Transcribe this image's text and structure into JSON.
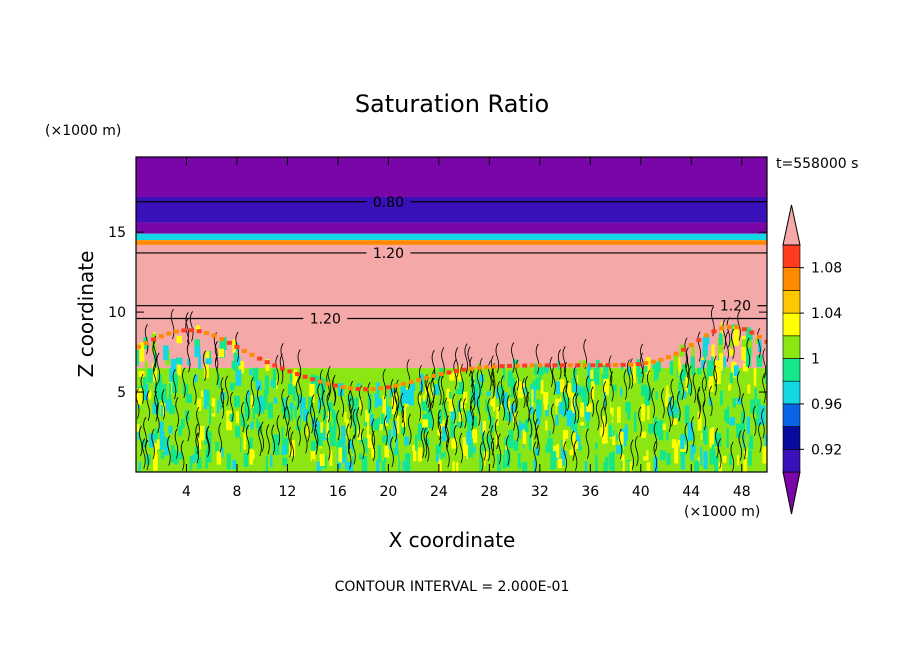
{
  "chart_data": {
    "type": "heatmap",
    "title": "Saturation Ratio",
    "xlabel": "X coordinate",
    "ylabel": "Z coordinate",
    "x_unit": "(×1000 m)",
    "z_unit": "(×1000 m)",
    "time_label": "t=558000 s",
    "footer": "CONTOUR INTERVAL = 2.000E-01",
    "xlim": [
      0,
      50
    ],
    "ylim": [
      0,
      19.7
    ],
    "x_ticks": [
      4,
      8,
      12,
      16,
      20,
      24,
      28,
      32,
      36,
      40,
      44,
      48
    ],
    "y_ticks": [
      5,
      10,
      15
    ],
    "colorbar": {
      "levels": [
        0.92,
        0.96,
        1,
        1.04,
        1.08
      ],
      "label_text": [
        "0.92",
        "0.96",
        "1",
        "1.04",
        "1.08"
      ],
      "colors": [
        "#7a06a8",
        "#3a10b8",
        "#0a0a9e",
        "#0a64e6",
        "#14d7e6",
        "#14e68a",
        "#8ce614",
        "#ffff00",
        "#ffc800",
        "#ff8a00",
        "#ff3c1e",
        "#f5a8a8"
      ]
    },
    "bands": [
      {
        "z_from": 17.2,
        "z_to": 19.7,
        "color": "#7a06a8"
      },
      {
        "z_from": 15.6,
        "z_to": 17.2,
        "color": "#3a10b8"
      },
      {
        "z_from": 14.9,
        "z_to": 15.6,
        "color": "#7a06a8"
      },
      {
        "z_from": 14.5,
        "z_to": 14.9,
        "color": "#14d7e6"
      },
      {
        "z_from": 14.2,
        "z_to": 14.5,
        "color": "#ff8a00"
      },
      {
        "z_from": 6.5,
        "z_to": 14.2,
        "color": "#f5a8a8"
      },
      {
        "z_from": 0,
        "z_to": 6.5,
        "color": "#8ce614"
      }
    ],
    "contours": [
      {
        "label": "0.80",
        "z": 16.9,
        "label_x": 20
      },
      {
        "label": "1.20",
        "z": 13.7,
        "label_x": 20
      },
      {
        "label": "1.20",
        "z": 9.6,
        "label_x": 15
      },
      {
        "label": "1.20",
        "z": 10.4,
        "label_x": 47.5
      }
    ]
  }
}
